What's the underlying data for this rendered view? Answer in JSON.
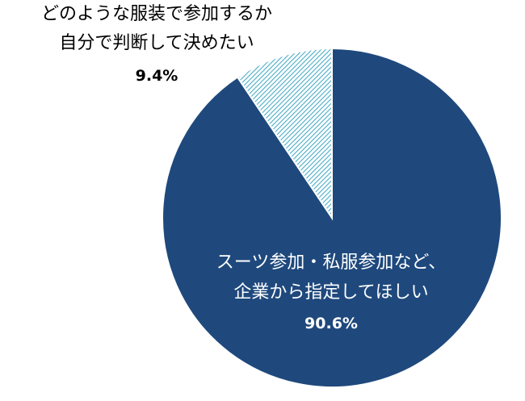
{
  "chart_data": {
    "type": "pie",
    "start_angle_deg": 0,
    "direction": "clockwise",
    "slices": [
      {
        "label_lines": [
          "スーツ参加・私服参加など、",
          "企業から指定してほしい"
        ],
        "value": 90.6,
        "value_label": "90.6%",
        "color": "#1F497D",
        "fill": "solid",
        "label_color": "#ffffff"
      },
      {
        "label_lines": [
          "どのような服装で参加するか",
          "自分で判断して決めたい"
        ],
        "value": 9.4,
        "value_label": "9.4%",
        "color": "#4BACC6",
        "fill": "hatched",
        "label_color": "#000000"
      }
    ]
  }
}
